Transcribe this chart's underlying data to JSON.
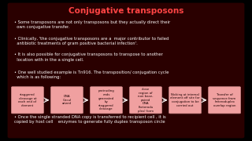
{
  "title": "Conjugative transposons",
  "title_color": "#FF4444",
  "text_color": "#ffffff",
  "bullets": [
    "Some transposons are not only transposons but they actually direct their\n  own conjugative transfer.",
    "Clinically, 'the conjugative transposons are a  major contributor to failed\n  antibiotic treatments of gram positive bacterial infection'.",
    "It is also possible for conjugative transposons to transpose to another\n  location with in the a single cell.",
    "One well studied example is Tn916. The transposition/ conjugation cycle\n  which is as following:"
  ],
  "bottom_text": "Once the single stranded DNA copy is transferred to recipient cell , it is\ncopied by host cell    enzymes to generate fully duplex transposon circle",
  "boxes": [
    "staggered\ncleavage at\neach end of\nelement",
    "DNA\nCircul\narized",
    "protruding\nends\ngenerated\nby\nstaggered\ncleavage",
    "close\nregion of\nnon base-\npaired\nDNA\n(heterodu\nplex) form",
    "Nicking at internal\nelement off site for\nconjugation to be\ncarried out",
    "Transfer of\nsequence from\nheteroduplex\noverlap region"
  ],
  "box_color": "#f0a0a0",
  "box_edge_color": "#cc8888",
  "box_text_color": "#1a0000",
  "arrow_color": "#ffffff",
  "content_bg": "#2a0000",
  "slide_bg": "#000000"
}
